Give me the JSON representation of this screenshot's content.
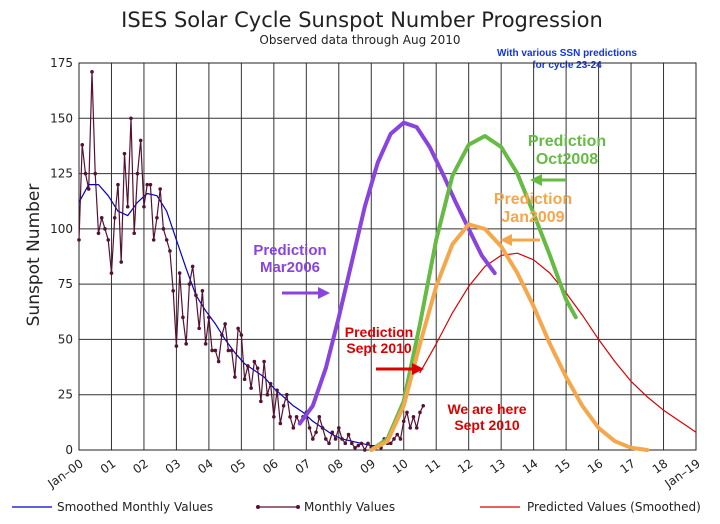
{
  "chart_data": {
    "type": "line",
    "title": "ISES Solar Cycle Sunspot Number Progression",
    "subtitle": "Observed data through Aug 2010",
    "note": [
      "With various SSN predictions",
      "for cycle 23-24"
    ],
    "ylabel": "Sunspot Number",
    "xlabel": "",
    "xlim": [
      2000,
      2019
    ],
    "ylim": [
      0,
      175
    ],
    "grid": true,
    "x_ticks": [
      {
        "x": 2000,
        "label": "Jan–00"
      },
      {
        "x": 2001,
        "label": "01"
      },
      {
        "x": 2002,
        "label": "02"
      },
      {
        "x": 2003,
        "label": "03"
      },
      {
        "x": 2004,
        "label": "04"
      },
      {
        "x": 2005,
        "label": "05"
      },
      {
        "x": 2006,
        "label": "06"
      },
      {
        "x": 2007,
        "label": "07"
      },
      {
        "x": 2008,
        "label": "08"
      },
      {
        "x": 2009,
        "label": "09"
      },
      {
        "x": 2010,
        "label": "10"
      },
      {
        "x": 2011,
        "label": "11"
      },
      {
        "x": 2012,
        "label": "12"
      },
      {
        "x": 2013,
        "label": "13"
      },
      {
        "x": 2014,
        "label": "14"
      },
      {
        "x": 2015,
        "label": "15"
      },
      {
        "x": 2016,
        "label": "16"
      },
      {
        "x": 2017,
        "label": "17"
      },
      {
        "x": 2018,
        "label": "18"
      },
      {
        "x": 2019,
        "label": "Jan–19"
      }
    ],
    "y_ticks": [
      0,
      25,
      50,
      75,
      100,
      125,
      150,
      175
    ],
    "series": [
      {
        "name": "Smoothed Monthly Values",
        "color": "#0000cc",
        "x": [
          2000.0,
          2000.3,
          2000.6,
          2000.9,
          2001.2,
          2001.5,
          2001.8,
          2002.1,
          2002.4,
          2002.7,
          2003.0,
          2003.3,
          2003.6,
          2003.9,
          2004.2,
          2004.5,
          2004.8,
          2005.1,
          2005.4,
          2005.7,
          2006.0,
          2006.3,
          2006.6,
          2006.9,
          2007.2,
          2007.5,
          2007.8,
          2008.1,
          2008.4,
          2008.7,
          2009.0,
          2009.3
        ],
        "y": [
          112,
          120,
          120,
          115,
          108,
          106,
          112,
          116,
          115,
          108,
          95,
          82,
          70,
          63,
          57,
          50,
          44,
          39,
          36,
          33,
          28,
          24,
          20,
          17,
          13,
          10,
          7,
          5,
          4,
          3,
          2,
          2
        ]
      },
      {
        "name": "Monthly Values",
        "color": "#551133",
        "marker": "dot",
        "x": [
          2000.0,
          2000.1,
          2000.2,
          2000.3,
          2000.4,
          2000.5,
          2000.6,
          2000.7,
          2000.8,
          2000.9,
          2001.0,
          2001.1,
          2001.2,
          2001.3,
          2001.4,
          2001.5,
          2001.6,
          2001.7,
          2001.8,
          2001.9,
          2002.0,
          2002.1,
          2002.2,
          2002.3,
          2002.4,
          2002.5,
          2002.6,
          2002.7,
          2002.8,
          2002.9,
          2003.0,
          2003.1,
          2003.2,
          2003.3,
          2003.4,
          2003.5,
          2003.6,
          2003.7,
          2003.8,
          2003.9,
          2004.0,
          2004.1,
          2004.2,
          2004.3,
          2004.4,
          2004.5,
          2004.6,
          2004.7,
          2004.8,
          2004.9,
          2005.0,
          2005.1,
          2005.2,
          2005.3,
          2005.4,
          2005.5,
          2005.6,
          2005.7,
          2005.8,
          2005.9,
          2006.0,
          2006.1,
          2006.2,
          2006.3,
          2006.4,
          2006.5,
          2006.6,
          2006.7,
          2006.8,
          2006.9,
          2007.0,
          2007.1,
          2007.2,
          2007.3,
          2007.4,
          2007.5,
          2007.6,
          2007.7,
          2007.8,
          2007.9,
          2008.0,
          2008.1,
          2008.2,
          2008.3,
          2008.4,
          2008.5,
          2008.6,
          2008.7,
          2008.8,
          2008.9,
          2009.0,
          2009.1,
          2009.2,
          2009.3,
          2009.4,
          2009.5,
          2009.6,
          2009.7,
          2009.8,
          2009.9,
          2010.0,
          2010.1,
          2010.2,
          2010.3,
          2010.4,
          2010.5,
          2010.6
        ],
        "y": [
          95,
          138,
          125,
          118,
          171,
          125,
          98,
          105,
          100,
          95,
          80,
          105,
          120,
          85,
          134,
          110,
          150,
          98,
          125,
          140,
          110,
          120,
          120,
          95,
          105,
          118,
          100,
          95,
          90,
          72,
          47,
          80,
          60,
          48,
          75,
          83,
          70,
          55,
          72,
          48,
          60,
          45,
          45,
          40,
          52,
          57,
          45,
          45,
          33,
          55,
          52,
          32,
          38,
          28,
          40,
          37,
          22,
          40,
          25,
          30,
          15,
          27,
          12,
          20,
          25,
          15,
          10,
          15,
          12,
          15,
          17,
          10,
          5,
          8,
          15,
          10,
          5,
          3,
          8,
          5,
          10,
          5,
          3,
          7,
          3,
          1,
          2,
          3,
          0,
          3,
          1,
          1,
          2,
          1,
          5,
          3,
          3,
          5,
          7,
          5,
          13,
          17,
          10,
          15,
          10,
          17,
          20
        ]
      },
      {
        "name": "Predicted Values (Smoothed)",
        "color": "#dd0000",
        "x": [
          2010.5,
          2011.0,
          2011.5,
          2012.0,
          2012.5,
          2013.0,
          2013.5,
          2014.0,
          2014.5,
          2015.0,
          2015.5,
          2016.0,
          2016.5,
          2017.0,
          2017.5,
          2018.0,
          2018.5,
          2019.0
        ],
        "y": [
          35,
          48,
          62,
          74,
          83,
          88,
          89,
          86,
          80,
          71,
          61,
          50,
          40,
          31,
          24,
          18,
          13,
          8
        ]
      },
      {
        "name": "Prediction Mar2006",
        "color": "#8844dd",
        "x": [
          2006.8,
          2007.2,
          2007.6,
          2008.0,
          2008.4,
          2008.8,
          2009.2,
          2009.6,
          2010.0,
          2010.4,
          2010.8,
          2011.2,
          2011.6,
          2012.0,
          2012.4,
          2012.8
        ],
        "y": [
          12,
          20,
          37,
          60,
          85,
          110,
          130,
          143,
          148,
          146,
          137,
          125,
          112,
          100,
          88,
          80
        ]
      },
      {
        "name": "Prediction Oct2008",
        "color": "#66bb44",
        "x": [
          2009.0,
          2009.5,
          2010.0,
          2010.5,
          2011.0,
          2011.5,
          2012.0,
          2012.5,
          2013.0,
          2013.5,
          2014.0,
          2014.5,
          2015.0,
          2015.3
        ],
        "y": [
          0,
          5,
          22,
          57,
          95,
          124,
          138,
          142,
          137,
          125,
          107,
          88,
          68,
          60
        ]
      },
      {
        "name": "Prediction Jan2009",
        "color": "#f5a74c",
        "x": [
          2009.0,
          2009.5,
          2010.0,
          2010.5,
          2011.0,
          2011.5,
          2012.0,
          2012.5,
          2013.0,
          2013.5,
          2014.0,
          2014.5,
          2015.0,
          2015.5,
          2016.0,
          2016.5,
          2017.0,
          2017.5
        ],
        "y": [
          0,
          4,
          20,
          48,
          74,
          93,
          102,
          100,
          92,
          80,
          65,
          48,
          33,
          20,
          10,
          4,
          1,
          0
        ]
      }
    ],
    "annotations": [
      {
        "text": [
          "Prediction",
          "Mar2006"
        ],
        "color": "#8844dd"
      },
      {
        "text": [
          "Prediction",
          "Oct2008"
        ],
        "color": "#66bb44"
      },
      {
        "text": [
          "Prediction",
          "Jan2009"
        ],
        "color": "#f5a74c"
      },
      {
        "text": [
          "Prediction",
          "Sept 2010"
        ],
        "color": "#dd0000"
      },
      {
        "text": [
          "We are here",
          "Sept 2010"
        ],
        "color": "#dd0000"
      }
    ],
    "legend": {
      "placement": "bottom",
      "entries": [
        "Smoothed Monthly Values",
        "Monthly Values",
        "Predicted Values (Smoothed)"
      ]
    }
  }
}
